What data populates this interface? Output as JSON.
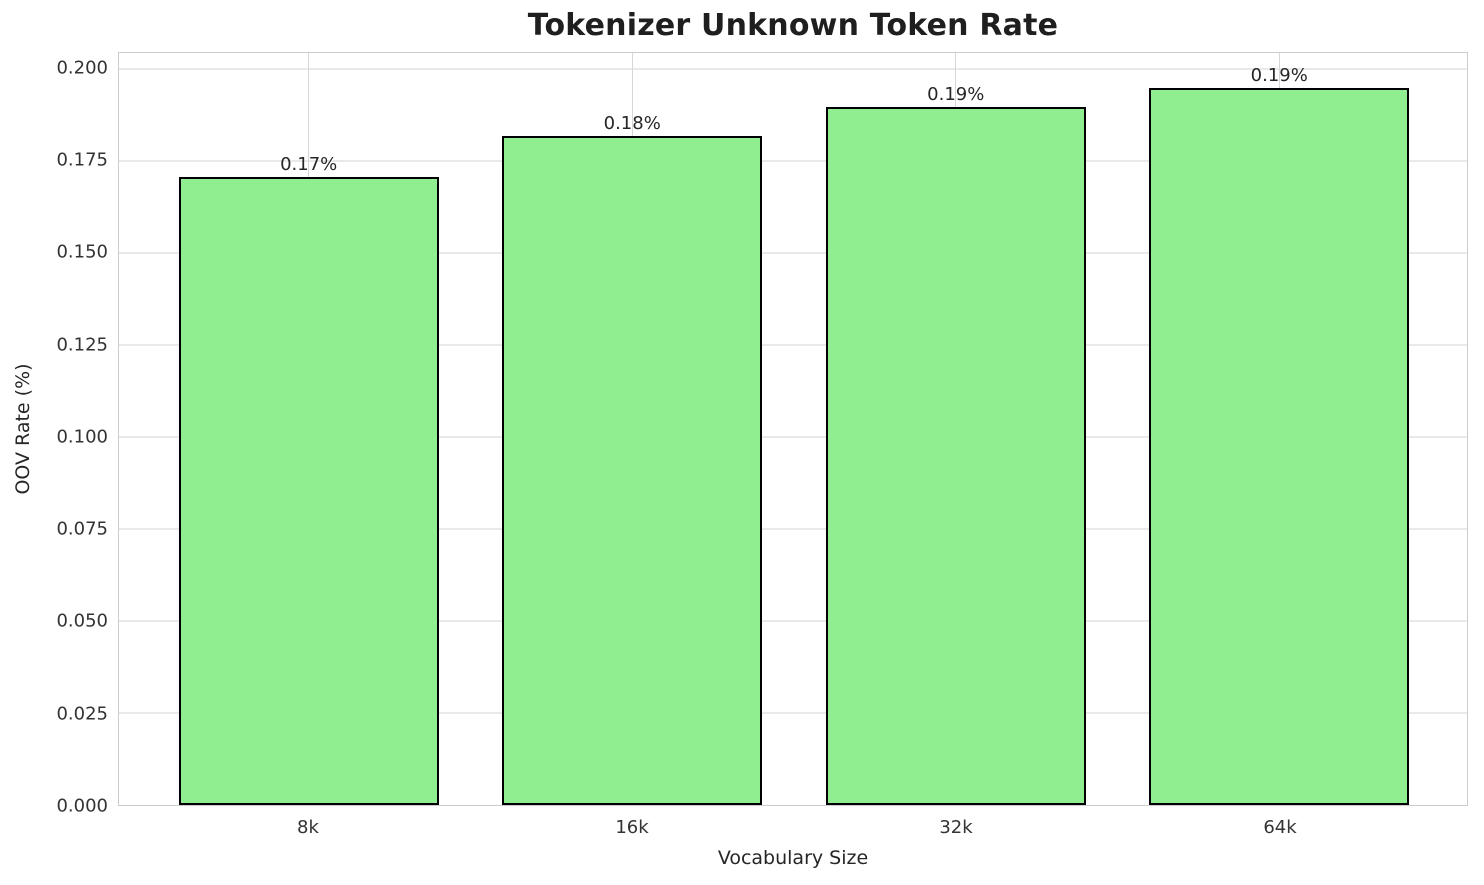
{
  "chart_data": {
    "type": "bar",
    "title": "Tokenizer Unknown Token Rate",
    "xlabel": "Vocabulary Size",
    "ylabel": "OOV Rate (%)",
    "categories": [
      "8k",
      "16k",
      "32k",
      "64k"
    ],
    "values": [
      0.1705,
      0.1818,
      0.1897,
      0.1949
    ],
    "bar_labels": [
      "0.17%",
      "0.18%",
      "0.19%",
      "0.19%"
    ],
    "ylim": [
      0,
      0.2043
    ],
    "yticks": [
      0,
      0.025,
      0.05,
      0.075,
      0.1,
      0.125,
      0.15,
      0.175,
      0.2
    ],
    "ytick_labels": [
      "0.000",
      "0.025",
      "0.050",
      "0.075",
      "0.100",
      "0.125",
      "0.150",
      "0.175",
      "0.200"
    ],
    "grid": true,
    "legend_position": "none",
    "colors": {
      "bar_fill": "#90EE90",
      "bar_edge": "#000000",
      "grid_horizontal": "#e9e9e9",
      "grid_vertical": "#d6d6d6",
      "spine": "#cccccc",
      "text": "#262626"
    }
  }
}
